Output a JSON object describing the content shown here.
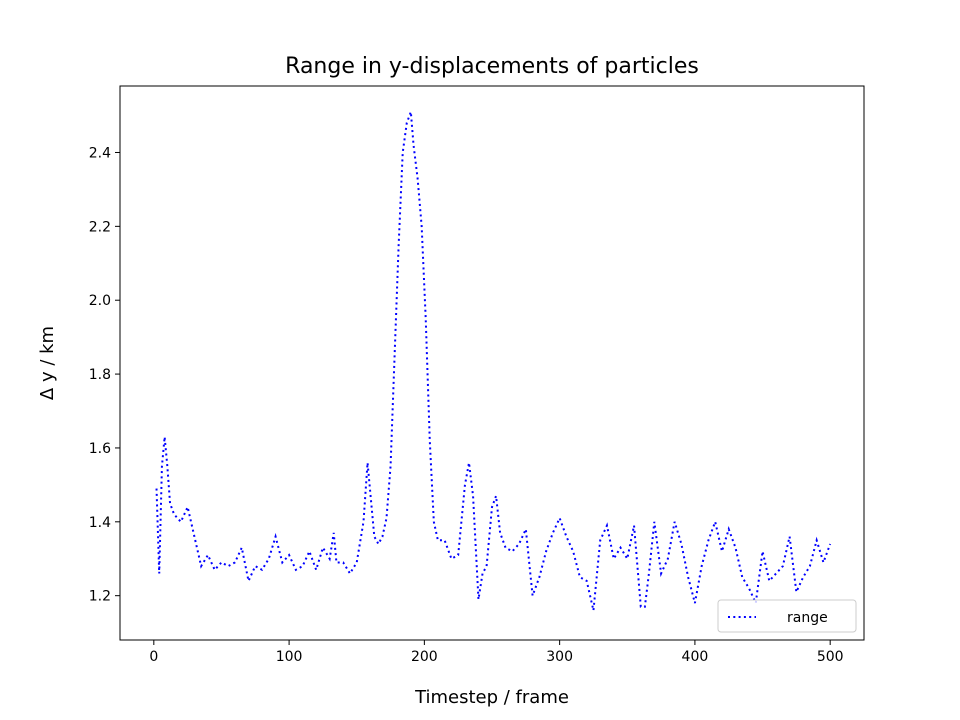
{
  "chart_data": {
    "type": "line",
    "title": "Range in y-displacements of particles",
    "x_label": "Timestep / frame",
    "y_label": "Δ y / km",
    "legend": "lower right",
    "grid": false,
    "xlim": [
      -25,
      525
    ],
    "ylim": [
      1.08,
      2.58
    ],
    "xticks": [
      0,
      100,
      200,
      300,
      400,
      500
    ],
    "yticks": [
      1.2,
      1.4,
      1.6,
      1.8,
      {
        "value": 2,
        "label": "2.0"
      },
      2.2,
      2.4
    ],
    "x": [
      2,
      4,
      6,
      8,
      10,
      12,
      15,
      20,
      25,
      30,
      35,
      40,
      45,
      50,
      55,
      60,
      65,
      70,
      75,
      80,
      85,
      90,
      95,
      100,
      105,
      110,
      115,
      120,
      125,
      130,
      133,
      135,
      140,
      145,
      150,
      155,
      158,
      160,
      163,
      166,
      169,
      172,
      175,
      178,
      181,
      184,
      187,
      190,
      192,
      195,
      198,
      201,
      204,
      207,
      210,
      215,
      220,
      225,
      230,
      233,
      236,
      240,
      243,
      246,
      250,
      253,
      256,
      260,
      265,
      270,
      275,
      280,
      285,
      290,
      295,
      300,
      305,
      310,
      315,
      320,
      325,
      330,
      335,
      340,
      345,
      350,
      355,
      360,
      363,
      366,
      370,
      375,
      380,
      385,
      390,
      395,
      400,
      405,
      410,
      415,
      420,
      425,
      430,
      435,
      440,
      445,
      450,
      455,
      460,
      465,
      470,
      475,
      480,
      485,
      490,
      495,
      500
    ],
    "series": [
      {
        "name": "range",
        "color": "#0000ff",
        "style": "dotted",
        "values": [
          1.49,
          1.26,
          1.55,
          1.63,
          1.55,
          1.45,
          1.42,
          1.4,
          1.44,
          1.36,
          1.28,
          1.31,
          1.27,
          1.29,
          1.28,
          1.29,
          1.33,
          1.24,
          1.28,
          1.27,
          1.3,
          1.36,
          1.29,
          1.31,
          1.27,
          1.28,
          1.32,
          1.27,
          1.33,
          1.3,
          1.37,
          1.29,
          1.29,
          1.26,
          1.29,
          1.4,
          1.56,
          1.48,
          1.36,
          1.34,
          1.36,
          1.41,
          1.55,
          1.85,
          2.15,
          2.4,
          2.48,
          2.51,
          2.42,
          2.33,
          2.2,
          1.95,
          1.62,
          1.4,
          1.35,
          1.35,
          1.3,
          1.31,
          1.5,
          1.56,
          1.47,
          1.19,
          1.26,
          1.28,
          1.44,
          1.47,
          1.37,
          1.33,
          1.32,
          1.34,
          1.38,
          1.2,
          1.25,
          1.32,
          1.37,
          1.41,
          1.36,
          1.32,
          1.25,
          1.24,
          1.16,
          1.35,
          1.39,
          1.3,
          1.33,
          1.3,
          1.39,
          1.17,
          1.17,
          1.26,
          1.4,
          1.26,
          1.3,
          1.4,
          1.34,
          1.25,
          1.18,
          1.28,
          1.35,
          1.4,
          1.32,
          1.38,
          1.33,
          1.25,
          1.22,
          1.18,
          1.32,
          1.24,
          1.26,
          1.28,
          1.36,
          1.21,
          1.25,
          1.28,
          1.35,
          1.29,
          1.34
        ]
      }
    ]
  }
}
